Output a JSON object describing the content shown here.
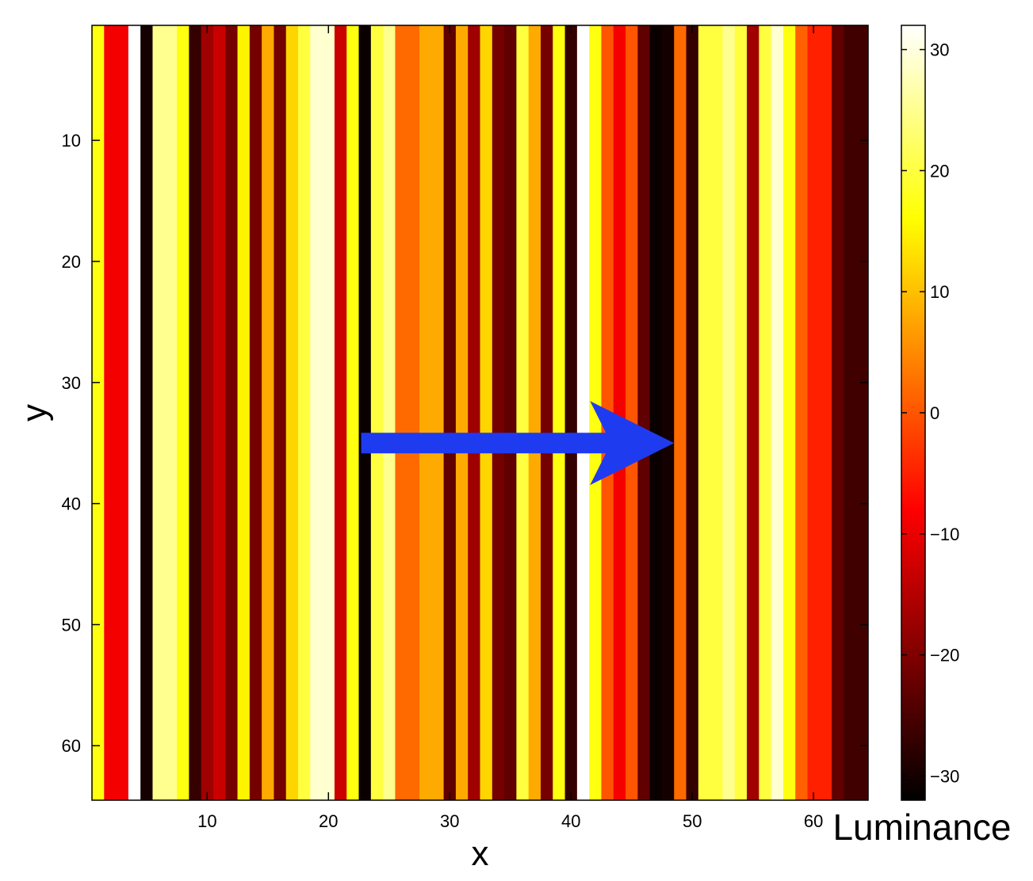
{
  "chart_data": {
    "type": "heatmap",
    "title": "",
    "xlabel": "x",
    "ylabel": "y",
    "colorbar_label": "Luminance",
    "colormap": "hot",
    "xlim": [
      0.5,
      64.5
    ],
    "ylim": [
      0.5,
      64.5
    ],
    "y_reversed": true,
    "x_ticks": [
      10,
      20,
      30,
      40,
      50,
      60
    ],
    "y_ticks": [
      10,
      20,
      30,
      40,
      50,
      60
    ],
    "clim": [
      -32,
      32
    ],
    "colorbar_ticks": [
      30,
      20,
      10,
      0,
      -10,
      -20,
      -30
    ],
    "column_values": [
      17,
      -9,
      -9,
      32,
      -30,
      25,
      25,
      17,
      -27,
      -17,
      -13,
      -21,
      15,
      -21,
      8,
      -21,
      12,
      20,
      29,
      29,
      -13,
      17,
      -31,
      20,
      25,
      2,
      2,
      8,
      8,
      -23,
      8,
      -17,
      12,
      -21,
      -23,
      20,
      8,
      -21,
      17,
      -27,
      32,
      17,
      0,
      -9,
      0,
      -23,
      -31,
      -30,
      2,
      -27,
      20,
      20,
      25,
      20,
      -17,
      20,
      29,
      17,
      1,
      -5,
      -5,
      -23,
      -26,
      -26
    ],
    "annotation_arrow": {
      "from": [
        22.7,
        35
      ],
      "to": [
        48.5,
        35
      ],
      "color": "#1f3bf0"
    }
  }
}
